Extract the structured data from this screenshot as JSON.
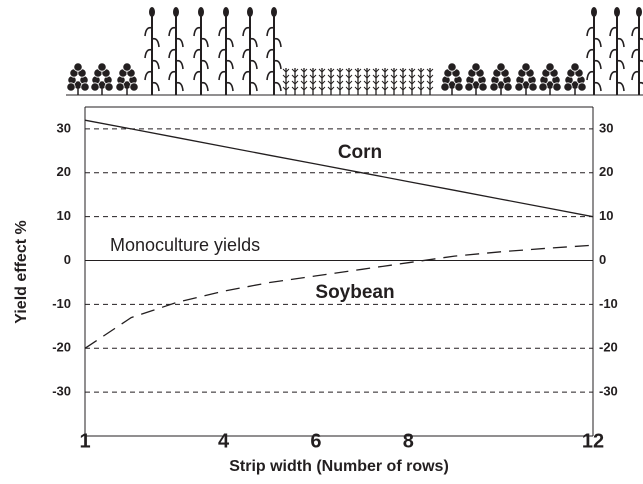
{
  "chart_data": {
    "type": "line",
    "annotations": [
      "Corn",
      "Soybean",
      "Monoculture yields"
    ],
    "xlabel": "Strip width (Number of rows)",
    "ylabel": "Yield effect %",
    "x": [
      1,
      2,
      3,
      4,
      5,
      6,
      7,
      8,
      9,
      10,
      11,
      12
    ],
    "series": [
      {
        "name": "Corn",
        "color": "#231f20",
        "dash": false,
        "values": [
          32,
          30,
          28,
          26,
          24,
          22,
          20,
          18,
          16,
          14,
          12,
          10
        ]
      },
      {
        "name": "Soybean",
        "color": "#231f20",
        "dash": true,
        "values": [
          -20,
          -13,
          -9.5,
          -7,
          -5,
          -3.5,
          -2,
          -0.5,
          1,
          2,
          2.8,
          3.5
        ]
      }
    ],
    "xlim": [
      1,
      12
    ],
    "xticks": [
      1,
      4,
      6,
      8,
      12
    ],
    "ylim": [
      -40,
      35
    ],
    "yticks": [
      30,
      20,
      10,
      0,
      -10,
      -20,
      -30
    ],
    "grid": true
  }
}
